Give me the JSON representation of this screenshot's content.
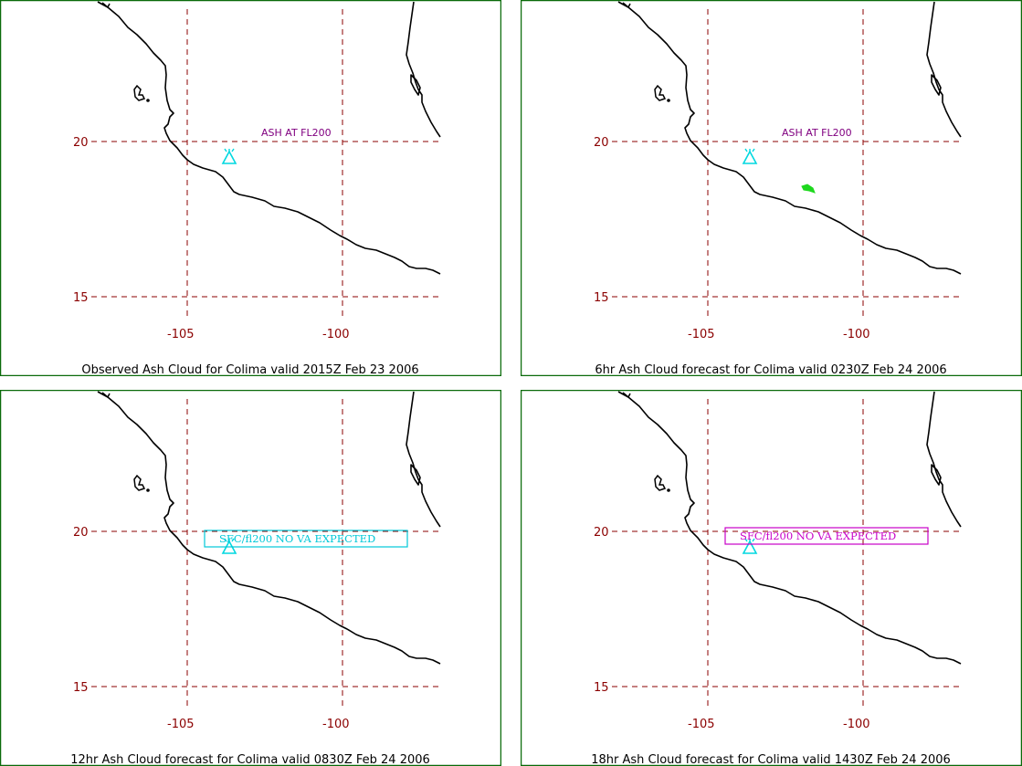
{
  "colors": {
    "frame": "#0a6b0a",
    "grid": "#8b0000",
    "coast": "#000000",
    "volcano": "#00d8e0",
    "ash_label": "#800080",
    "ash_cloud": "#1ed81e",
    "box_cyan": "#00c8d8",
    "box_magenta": "#c800c8"
  },
  "axes": {
    "lat_labels": [
      "20",
      "15"
    ],
    "lon_labels": [
      "-105",
      "-100"
    ]
  },
  "panels": [
    {
      "caption": "Observed Ash Cloud for Colima valid 2015Z Feb 23 2006",
      "annotation": "ASH AT FL200",
      "box_text": "",
      "ash_cloud": false,
      "volcano_icon": "volcano-triangle-icon"
    },
    {
      "caption": "6hr Ash Cloud forecast for Colima valid 0230Z Feb 24 2006",
      "annotation": "ASH AT FL200",
      "box_text": "",
      "ash_cloud": true,
      "volcano_icon": "volcano-triangle-icon"
    },
    {
      "caption": "12hr Ash Cloud forecast for Colima valid 0830Z Feb 24 2006",
      "annotation": "",
      "box_text": "SFC/fl200 NO VA EXPECTED",
      "box_color": "#00c8d8",
      "ash_cloud": false,
      "volcano_icon": "volcano-triangle-icon"
    },
    {
      "caption": "18hr Ash Cloud forecast for Colima valid 1430Z Feb 24 2006",
      "annotation": "",
      "box_text": "SFC/fl200 NO VA EXPECTED",
      "box_color": "#c800c8",
      "ash_cloud": false,
      "volcano_icon": "volcano-triangle-icon"
    }
  ]
}
